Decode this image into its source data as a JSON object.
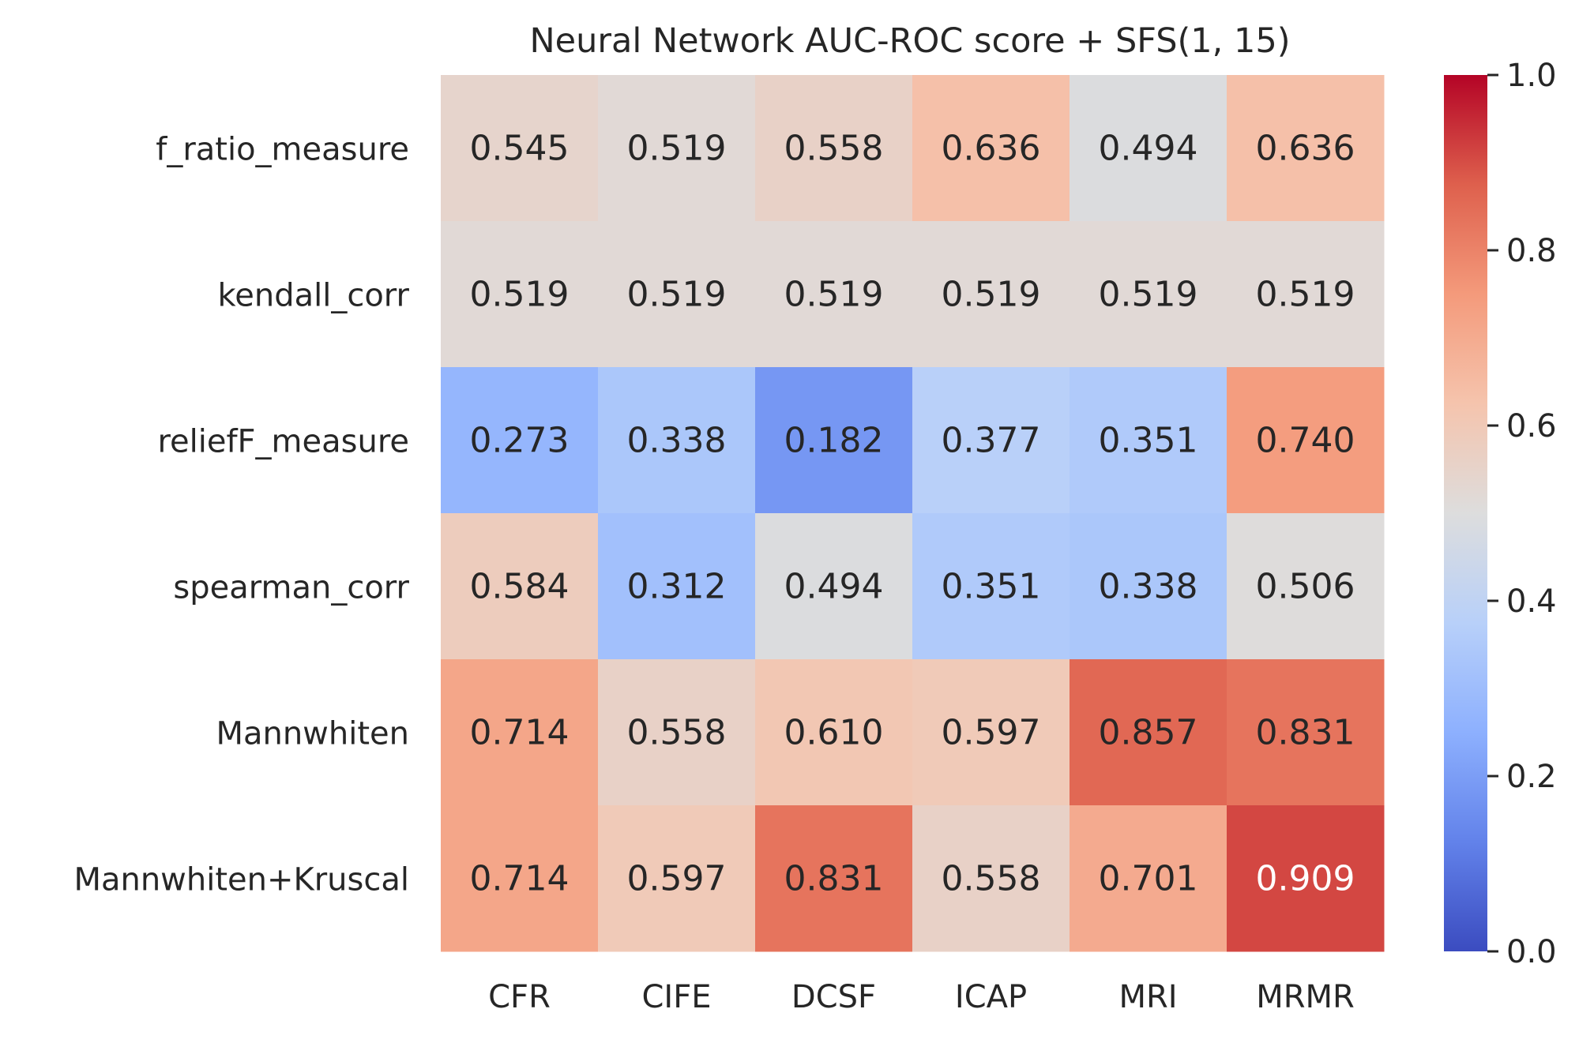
{
  "chart_data": {
    "type": "heatmap",
    "title": "Neural Network AUC-ROC score + SFS(1, 15)",
    "xlabel": "",
    "ylabel": "",
    "columns": [
      "CFR",
      "CIFE",
      "DCSF",
      "ICAP",
      "MRI",
      "MRMR"
    ],
    "rows": [
      "f_ratio_measure",
      "kendall_corr",
      "reliefF_measure",
      "spearman_corr",
      "Mannwhiten",
      "Mannwhiten+Kruscal"
    ],
    "values": [
      [
        0.545,
        0.519,
        0.558,
        0.636,
        0.494,
        0.636
      ],
      [
        0.519,
        0.519,
        0.519,
        0.519,
        0.519,
        0.519
      ],
      [
        0.273,
        0.338,
        0.182,
        0.377,
        0.351,
        0.74
      ],
      [
        0.584,
        0.312,
        0.494,
        0.351,
        0.338,
        0.506
      ],
      [
        0.714,
        0.558,
        0.61,
        0.597,
        0.857,
        0.831
      ],
      [
        0.714,
        0.597,
        0.831,
        0.558,
        0.701,
        0.909
      ]
    ],
    "value_labels": [
      [
        "0.545",
        "0.519",
        "0.558",
        "0.636",
        "0.494",
        "0.636"
      ],
      [
        "0.519",
        "0.519",
        "0.519",
        "0.519",
        "0.519",
        "0.519"
      ],
      [
        "0.273",
        "0.338",
        "0.182",
        "0.377",
        "0.351",
        "0.740"
      ],
      [
        "0.584",
        "0.312",
        "0.494",
        "0.351",
        "0.338",
        "0.506"
      ],
      [
        "0.714",
        "0.558",
        "0.610",
        "0.597",
        "0.857",
        "0.831"
      ],
      [
        "0.714",
        "0.597",
        "0.831",
        "0.558",
        "0.701",
        "0.909"
      ]
    ],
    "colormap": "coolwarm",
    "vmin": 0.0,
    "vmax": 1.0,
    "colorbar_ticks": [
      0.0,
      0.2,
      0.4,
      0.6,
      0.8,
      1.0
    ],
    "colorbar_tick_labels": [
      "0.0",
      "0.2",
      "0.4",
      "0.6",
      "0.8",
      "1.0"
    ],
    "grid": false,
    "colors": {
      "text_dark": "#262626",
      "text_light": "#ffffff",
      "background": "#ffffff"
    }
  }
}
